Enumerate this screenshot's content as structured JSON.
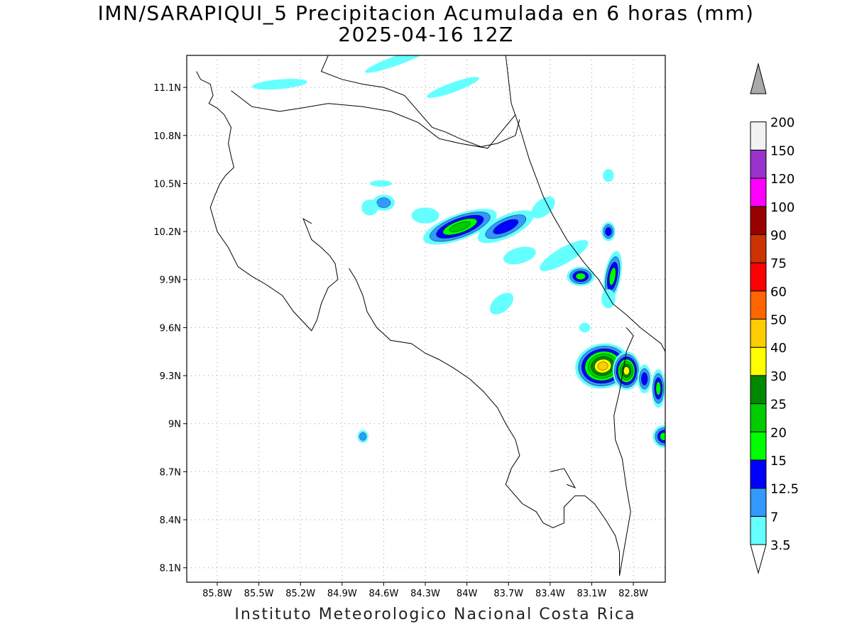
{
  "title": {
    "line1": "IMN/SARAPIQUI_5 Precipitacion Acumulada en 6 horas (mm)",
    "line2": "2025-04-16 12Z"
  },
  "credit": "Instituto Meteorologico Nacional Costa Rica",
  "map": {
    "lon_range": [
      -86.02,
      -82.57
    ],
    "lat_range": [
      8.01,
      11.3
    ],
    "grid": true,
    "lat_ticks": [
      {
        "value": 11.1,
        "label": "11.1N"
      },
      {
        "value": 10.8,
        "label": "10.8N"
      },
      {
        "value": 10.5,
        "label": "10.5N"
      },
      {
        "value": 10.2,
        "label": "10.2N"
      },
      {
        "value": 9.9,
        "label": "9.9N"
      },
      {
        "value": 9.6,
        "label": "9.6N"
      },
      {
        "value": 9.3,
        "label": "9.3N"
      },
      {
        "value": 9.0,
        "label": "9N"
      },
      {
        "value": 8.7,
        "label": "8.7N"
      },
      {
        "value": 8.4,
        "label": "8.4N"
      },
      {
        "value": 8.1,
        "label": "8.1N"
      }
    ],
    "lon_ticks": [
      {
        "value": -85.8,
        "label": "85.8W"
      },
      {
        "value": -85.5,
        "label": "85.5W"
      },
      {
        "value": -85.2,
        "label": "85.2W"
      },
      {
        "value": -84.9,
        "label": "84.9W"
      },
      {
        "value": -84.6,
        "label": "84.6W"
      },
      {
        "value": -84.3,
        "label": "84.3W"
      },
      {
        "value": -84.0,
        "label": "84W"
      },
      {
        "value": -83.7,
        "label": "83.7W"
      },
      {
        "value": -83.4,
        "label": "83.4W"
      },
      {
        "value": -83.1,
        "label": "83.1W"
      },
      {
        "value": -82.8,
        "label": "82.8W"
      }
    ],
    "coastline": [
      [
        [
          -85.95,
          11.2
        ],
        [
          -85.92,
          11.15
        ],
        [
          -85.85,
          11.12
        ],
        [
          -85.83,
          11.05
        ],
        [
          -85.86,
          11.0
        ],
        [
          -85.8,
          10.97
        ],
        [
          -85.75,
          10.93
        ],
        [
          -85.7,
          10.85
        ],
        [
          -85.72,
          10.75
        ],
        [
          -85.7,
          10.67
        ],
        [
          -85.68,
          10.6
        ],
        [
          -85.74,
          10.55
        ],
        [
          -85.78,
          10.5
        ],
        [
          -85.82,
          10.42
        ],
        [
          -85.85,
          10.35
        ],
        [
          -85.8,
          10.2
        ],
        [
          -85.72,
          10.1
        ],
        [
          -85.65,
          9.98
        ],
        [
          -85.55,
          9.92
        ],
        [
          -85.45,
          9.87
        ],
        [
          -85.33,
          9.8
        ],
        [
          -85.25,
          9.7
        ],
        [
          -85.12,
          9.58
        ],
        [
          -85.08,
          9.65
        ],
        [
          -85.05,
          9.75
        ],
        [
          -85.0,
          9.85
        ],
        [
          -84.93,
          9.9
        ],
        [
          -84.95,
          10.0
        ],
        [
          -84.99,
          10.05
        ],
        [
          -85.05,
          10.1
        ],
        [
          -85.12,
          10.15
        ],
        [
          -85.18,
          10.28
        ],
        [
          -85.12,
          10.25
        ]
      ],
      [
        [
          -84.85,
          9.97
        ],
        [
          -84.8,
          9.9
        ],
        [
          -84.75,
          9.8
        ],
        [
          -84.72,
          9.7
        ],
        [
          -84.65,
          9.6
        ],
        [
          -84.55,
          9.52
        ],
        [
          -84.4,
          9.5
        ],
        [
          -84.3,
          9.44
        ],
        [
          -84.2,
          9.4
        ],
        [
          -84.1,
          9.35
        ],
        [
          -83.98,
          9.28
        ],
        [
          -83.88,
          9.2
        ],
        [
          -83.78,
          9.1
        ],
        [
          -83.72,
          9.0
        ],
        [
          -83.65,
          8.9
        ],
        [
          -83.62,
          8.8
        ],
        [
          -83.68,
          8.72
        ],
        [
          -83.72,
          8.62
        ],
        [
          -83.6,
          8.5
        ],
        [
          -83.5,
          8.45
        ],
        [
          -83.45,
          8.38
        ],
        [
          -83.38,
          8.35
        ],
        [
          -83.3,
          8.38
        ],
        [
          -83.3,
          8.48
        ],
        [
          -83.22,
          8.55
        ],
        [
          -83.15,
          8.55
        ],
        [
          -83.08,
          8.5
        ],
        [
          -83.0,
          8.4
        ],
        [
          -82.93,
          8.3
        ],
        [
          -82.9,
          8.2
        ],
        [
          -82.9,
          8.05
        ]
      ],
      [
        [
          -83.4,
          8.7
        ],
        [
          -83.3,
          8.72
        ],
        [
          -83.22,
          8.6
        ],
        [
          -83.28,
          8.62
        ]
      ],
      [
        [
          -85.0,
          11.3
        ],
        [
          -85.05,
          11.2
        ],
        [
          -84.9,
          11.15
        ],
        [
          -84.75,
          11.12
        ],
        [
          -84.6,
          11.1
        ],
        [
          -84.45,
          11.05
        ],
        [
          -84.35,
          10.95
        ],
        [
          -84.25,
          10.85
        ],
        [
          -84.15,
          10.82
        ],
        [
          -84.05,
          10.78
        ],
        [
          -83.9,
          10.73
        ],
        [
          -83.78,
          10.75
        ],
        [
          -83.65,
          10.8
        ],
        [
          -83.62,
          10.9
        ]
      ],
      [
        [
          -83.72,
          11.3
        ],
        [
          -83.7,
          11.15
        ],
        [
          -83.68,
          11.0
        ],
        [
          -83.62,
          10.85
        ],
        [
          -83.55,
          10.65
        ],
        [
          -83.45,
          10.42
        ],
        [
          -83.38,
          10.3
        ],
        [
          -83.28,
          10.15
        ],
        [
          -83.15,
          10.0
        ],
        [
          -83.05,
          9.9
        ],
        [
          -82.95,
          9.75
        ],
        [
          -82.85,
          9.68
        ],
        [
          -82.75,
          9.6
        ],
        [
          -82.6,
          9.5
        ],
        [
          -82.57,
          9.45
        ]
      ]
    ],
    "borders": [
      [
        [
          -85.7,
          11.08
        ],
        [
          -85.55,
          10.98
        ],
        [
          -85.35,
          10.95
        ],
        [
          -85.2,
          10.97
        ],
        [
          -85.0,
          11.0
        ],
        [
          -84.75,
          10.98
        ],
        [
          -84.55,
          10.95
        ],
        [
          -84.35,
          10.88
        ],
        [
          -84.2,
          10.78
        ],
        [
          -84.05,
          10.75
        ],
        [
          -83.85,
          10.72
        ],
        [
          -83.65,
          10.93
        ]
      ],
      [
        [
          -82.85,
          9.6
        ],
        [
          -82.8,
          9.55
        ],
        [
          -82.85,
          9.45
        ],
        [
          -82.9,
          9.2
        ],
        [
          -82.94,
          9.05
        ],
        [
          -82.93,
          8.9
        ],
        [
          -82.88,
          8.78
        ],
        [
          -82.85,
          8.6
        ],
        [
          -82.82,
          8.45
        ],
        [
          -82.85,
          8.3
        ],
        [
          -82.88,
          8.15
        ],
        [
          -82.9,
          8.05
        ]
      ]
    ],
    "precip_cells": [
      {
        "lon": -84.05,
        "lat": 10.23,
        "rx": 0.28,
        "ry": 0.08,
        "rot": -20,
        "value": 22
      },
      {
        "lon": -83.72,
        "lat": 10.23,
        "rx": 0.22,
        "ry": 0.07,
        "rot": -25,
        "value": 14
      },
      {
        "lon": -83.3,
        "lat": 10.05,
        "rx": 0.2,
        "ry": 0.05,
        "rot": -30,
        "value": 6
      },
      {
        "lon": -83.18,
        "lat": 9.92,
        "rx": 0.1,
        "ry": 0.06,
        "rot": 0,
        "value": 18
      },
      {
        "lon": -82.95,
        "lat": 9.92,
        "rx": 0.06,
        "ry": 0.16,
        "rot": 10,
        "value": 16
      },
      {
        "lon": -82.98,
        "lat": 10.2,
        "rx": 0.05,
        "ry": 0.06,
        "rot": 0,
        "value": 14
      },
      {
        "lon": -83.02,
        "lat": 9.36,
        "rx": 0.2,
        "ry": 0.14,
        "rot": -10,
        "value": 42
      },
      {
        "lon": -82.85,
        "lat": 9.33,
        "rx": 0.1,
        "ry": 0.12,
        "rot": 0,
        "value": 35
      },
      {
        "lon": -82.72,
        "lat": 9.28,
        "rx": 0.05,
        "ry": 0.09,
        "rot": 0,
        "value": 14
      },
      {
        "lon": -82.62,
        "lat": 9.22,
        "rx": 0.05,
        "ry": 0.12,
        "rot": 0,
        "value": 18
      },
      {
        "lon": -82.58,
        "lat": 8.92,
        "rx": 0.08,
        "ry": 0.07,
        "rot": 0,
        "value": 16
      },
      {
        "lon": -83.45,
        "lat": 10.35,
        "rx": 0.1,
        "ry": 0.05,
        "rot": -40,
        "value": 6
      },
      {
        "lon": -83.62,
        "lat": 10.05,
        "rx": 0.12,
        "ry": 0.05,
        "rot": -15,
        "value": 6
      },
      {
        "lon": -83.75,
        "lat": 9.75,
        "rx": 0.1,
        "ry": 0.05,
        "rot": -40,
        "value": 4
      },
      {
        "lon": -84.6,
        "lat": 10.38,
        "rx": 0.08,
        "ry": 0.05,
        "rot": 0,
        "value": 7
      },
      {
        "lon": -84.62,
        "lat": 10.5,
        "rx": 0.08,
        "ry": 0.02,
        "rot": 0,
        "value": 4
      },
      {
        "lon": -84.75,
        "lat": 8.92,
        "rx": 0.04,
        "ry": 0.04,
        "rot": 0,
        "value": 8
      },
      {
        "lon": -84.7,
        "lat": 10.35,
        "rx": 0.06,
        "ry": 0.05,
        "rot": 0,
        "value": 5
      },
      {
        "lon": -84.3,
        "lat": 10.3,
        "rx": 0.1,
        "ry": 0.05,
        "rot": 0,
        "value": 4
      },
      {
        "lon": -85.35,
        "lat": 11.12,
        "rx": 0.2,
        "ry": 0.03,
        "rot": -5,
        "value": 5
      },
      {
        "lon": -84.5,
        "lat": 11.27,
        "rx": 0.25,
        "ry": 0.03,
        "rot": -20,
        "value": 5
      },
      {
        "lon": -84.1,
        "lat": 11.1,
        "rx": 0.2,
        "ry": 0.03,
        "rot": -20,
        "value": 4
      },
      {
        "lon": -82.98,
        "lat": 10.55,
        "rx": 0.04,
        "ry": 0.04,
        "rot": 0,
        "value": 4
      },
      {
        "lon": -83.15,
        "lat": 9.6,
        "rx": 0.04,
        "ry": 0.03,
        "rot": 0,
        "value": 4
      },
      {
        "lon": -82.98,
        "lat": 9.78,
        "rx": 0.05,
        "ry": 0.06,
        "rot": 0,
        "value": 4
      }
    ]
  },
  "colorbar": {
    "levels": [
      "3.5",
      "7",
      "12.5",
      "15",
      "20",
      "25",
      "30",
      "40",
      "50",
      "60",
      "75",
      "90",
      "100",
      "120",
      "150",
      "200"
    ],
    "colors": [
      "#66ffff",
      "#3399ff",
      "#0000ff",
      "#00ff00",
      "#00cc00",
      "#008800",
      "#ffff00",
      "#ffcc00",
      "#ff6600",
      "#ff0000",
      "#cc3300",
      "#990000",
      "#ff00ff",
      "#9933cc",
      "#f2f2f2",
      "#aaaaaa"
    ]
  }
}
